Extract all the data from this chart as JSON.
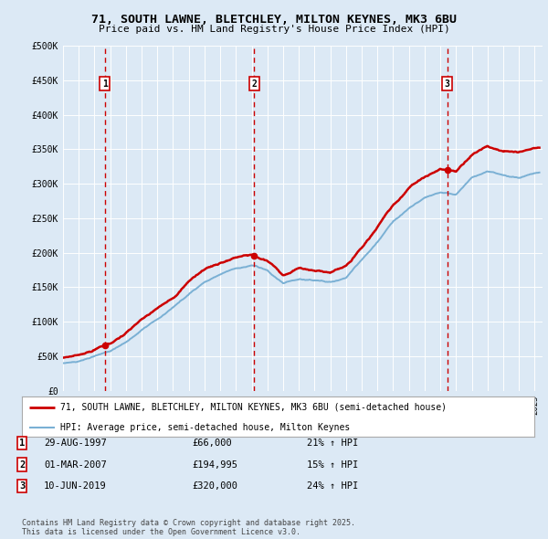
{
  "title": "71, SOUTH LAWNE, BLETCHLEY, MILTON KEYNES, MK3 6BU",
  "subtitle": "Price paid vs. HM Land Registry's House Price Index (HPI)",
  "background_color": "#dce9f5",
  "plot_bg_color": "#dce9f5",
  "ylim": [
    0,
    500000
  ],
  "yticks": [
    0,
    50000,
    100000,
    150000,
    200000,
    250000,
    300000,
    350000,
    400000,
    450000,
    500000
  ],
  "ytick_labels": [
    "£0",
    "£50K",
    "£100K",
    "£150K",
    "£200K",
    "£250K",
    "£300K",
    "£350K",
    "£400K",
    "£450K",
    "£500K"
  ],
  "xlim_start": 1995.0,
  "xlim_end": 2025.5,
  "transactions": [
    {
      "date": 1997.66,
      "price": 66000,
      "label": "1"
    },
    {
      "date": 2007.16,
      "price": 194995,
      "label": "2"
    },
    {
      "date": 2019.44,
      "price": 320000,
      "label": "3"
    }
  ],
  "legend_line1": "71, SOUTH LAWNE, BLETCHLEY, MILTON KEYNES, MK3 6BU (semi-detached house)",
  "legend_line2": "HPI: Average price, semi-detached house, Milton Keynes",
  "table_rows": [
    {
      "num": "1",
      "date": "29-AUG-1997",
      "price": "£66,000",
      "hpi": "21% ↑ HPI"
    },
    {
      "num": "2",
      "date": "01-MAR-2007",
      "price": "£194,995",
      "hpi": "15% ↑ HPI"
    },
    {
      "num": "3",
      "date": "10-JUN-2019",
      "price": "£320,000",
      "hpi": "24% ↑ HPI"
    }
  ],
  "footer": "Contains HM Land Registry data © Crown copyright and database right 2025.\nThis data is licensed under the Open Government Licence v3.0.",
  "red_color": "#cc0000",
  "blue_color": "#7ab0d4",
  "dashed_red": "#cc0000"
}
